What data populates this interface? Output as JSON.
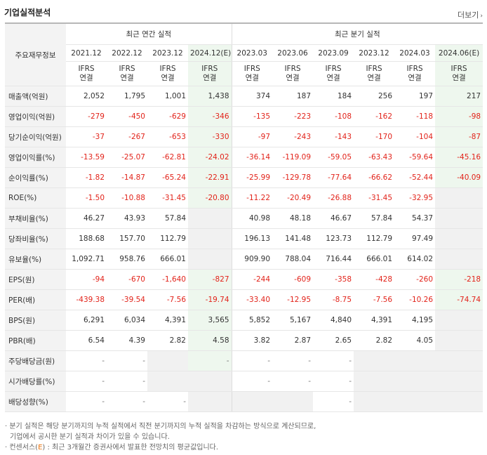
{
  "title": "기업실적분석",
  "more_label": "더보기",
  "header": {
    "row_label": "주요재무정보",
    "annual_label": "최근 연간 실적",
    "quarter_label": "최근 분기 실적",
    "periods": [
      "2021.12",
      "2022.12",
      "2023.12",
      "2024.12(E)",
      "2023.03",
      "2023.06",
      "2023.09",
      "2023.12",
      "2024.03",
      "2024.06(E)"
    ],
    "ifrs": "IFRS",
    "consolidated": "연결"
  },
  "rows": [
    {
      "label": "매출액(억원)",
      "values": [
        "2,052",
        "1,795",
        "1,001",
        "1,438",
        "374",
        "187",
        "184",
        "256",
        "197",
        "217"
      ]
    },
    {
      "label": "영업이익(억원)",
      "values": [
        "-279",
        "-450",
        "-629",
        "-346",
        "-135",
        "-223",
        "-108",
        "-162",
        "-118",
        "-98"
      ]
    },
    {
      "label": "당기순이익(억원)",
      "values": [
        "-37",
        "-267",
        "-653",
        "-330",
        "-97",
        "-243",
        "-143",
        "-170",
        "-104",
        "-87"
      ]
    },
    {
      "label": "영업이익률(%)",
      "values": [
        "-13.59",
        "-25.07",
        "-62.81",
        "-24.02",
        "-36.14",
        "-119.09",
        "-59.05",
        "-63.43",
        "-59.64",
        "-45.16"
      ]
    },
    {
      "label": "순이익률(%)",
      "values": [
        "-1.82",
        "-14.87",
        "-65.24",
        "-22.91",
        "-25.99",
        "-129.78",
        "-77.64",
        "-66.62",
        "-52.44",
        "-40.09"
      ]
    },
    {
      "label": "ROE(%)",
      "values": [
        "-1.50",
        "-10.88",
        "-31.45",
        "-20.80",
        "-11.22",
        "-20.49",
        "-26.88",
        "-31.45",
        "-32.95",
        ""
      ]
    },
    {
      "label": "부채비율(%)",
      "values": [
        "46.27",
        "43.93",
        "57.84",
        "",
        "40.98",
        "48.18",
        "46.67",
        "57.84",
        "54.37",
        ""
      ]
    },
    {
      "label": "당좌비율(%)",
      "values": [
        "188.68",
        "157.70",
        "112.79",
        "",
        "196.13",
        "141.48",
        "123.73",
        "112.79",
        "97.49",
        ""
      ]
    },
    {
      "label": "유보율(%)",
      "values": [
        "1,092.71",
        "958.76",
        "666.01",
        "",
        "909.90",
        "788.04",
        "716.44",
        "666.01",
        "614.02",
        ""
      ]
    },
    {
      "label": "EPS(원)",
      "values": [
        "-94",
        "-670",
        "-1,640",
        "-827",
        "-244",
        "-609",
        "-358",
        "-428",
        "-260",
        "-218"
      ]
    },
    {
      "label": "PER(배)",
      "values": [
        "-439.38",
        "-39.54",
        "-7.56",
        "-19.74",
        "-33.40",
        "-12.95",
        "-8.75",
        "-7.56",
        "-10.26",
        "-74.74"
      ]
    },
    {
      "label": "BPS(원)",
      "values": [
        "6,291",
        "6,034",
        "4,391",
        "3,565",
        "5,852",
        "5,167",
        "4,840",
        "4,391",
        "4,195",
        ""
      ]
    },
    {
      "label": "PBR(배)",
      "values": [
        "6.54",
        "4.39",
        "2.82",
        "4.58",
        "3.82",
        "2.87",
        "2.65",
        "2.82",
        "4.05",
        ""
      ]
    },
    {
      "label": "주당배당금(원)",
      "values": [
        "-",
        "-",
        "",
        "-",
        "-",
        "-",
        "-",
        "",
        "",
        ""
      ]
    },
    {
      "label": "시가배당률(%)",
      "values": [
        "-",
        "-",
        "",
        "",
        "-",
        "-",
        "-",
        "",
        "",
        ""
      ]
    },
    {
      "label": "배당성향(%)",
      "values": [
        "-",
        "-",
        "-",
        "",
        "",
        "",
        "-",
        "",
        "",
        ""
      ]
    }
  ],
  "notes": {
    "line1": "· 분기 실적은 해당 분기까지의 누적 실적에서 직전 분기까지의 누적 실적을 차감하는 방식으로 계산되므로,",
    "line2": "기업에서 공시한 분기 실적과 차이가 있을 수 있습니다.",
    "line3_pre": "· 컨센서스(",
    "line3_e": "E",
    "line3_post": ") : 최근 3개월간 증권사에서 발표한 전망치의 평균값입니다."
  },
  "colors": {
    "negative": "#e2231a",
    "ifrs": "#e8700a",
    "estimate_bg": "#eef7ee",
    "empty_bg": "#f1f1f1"
  }
}
